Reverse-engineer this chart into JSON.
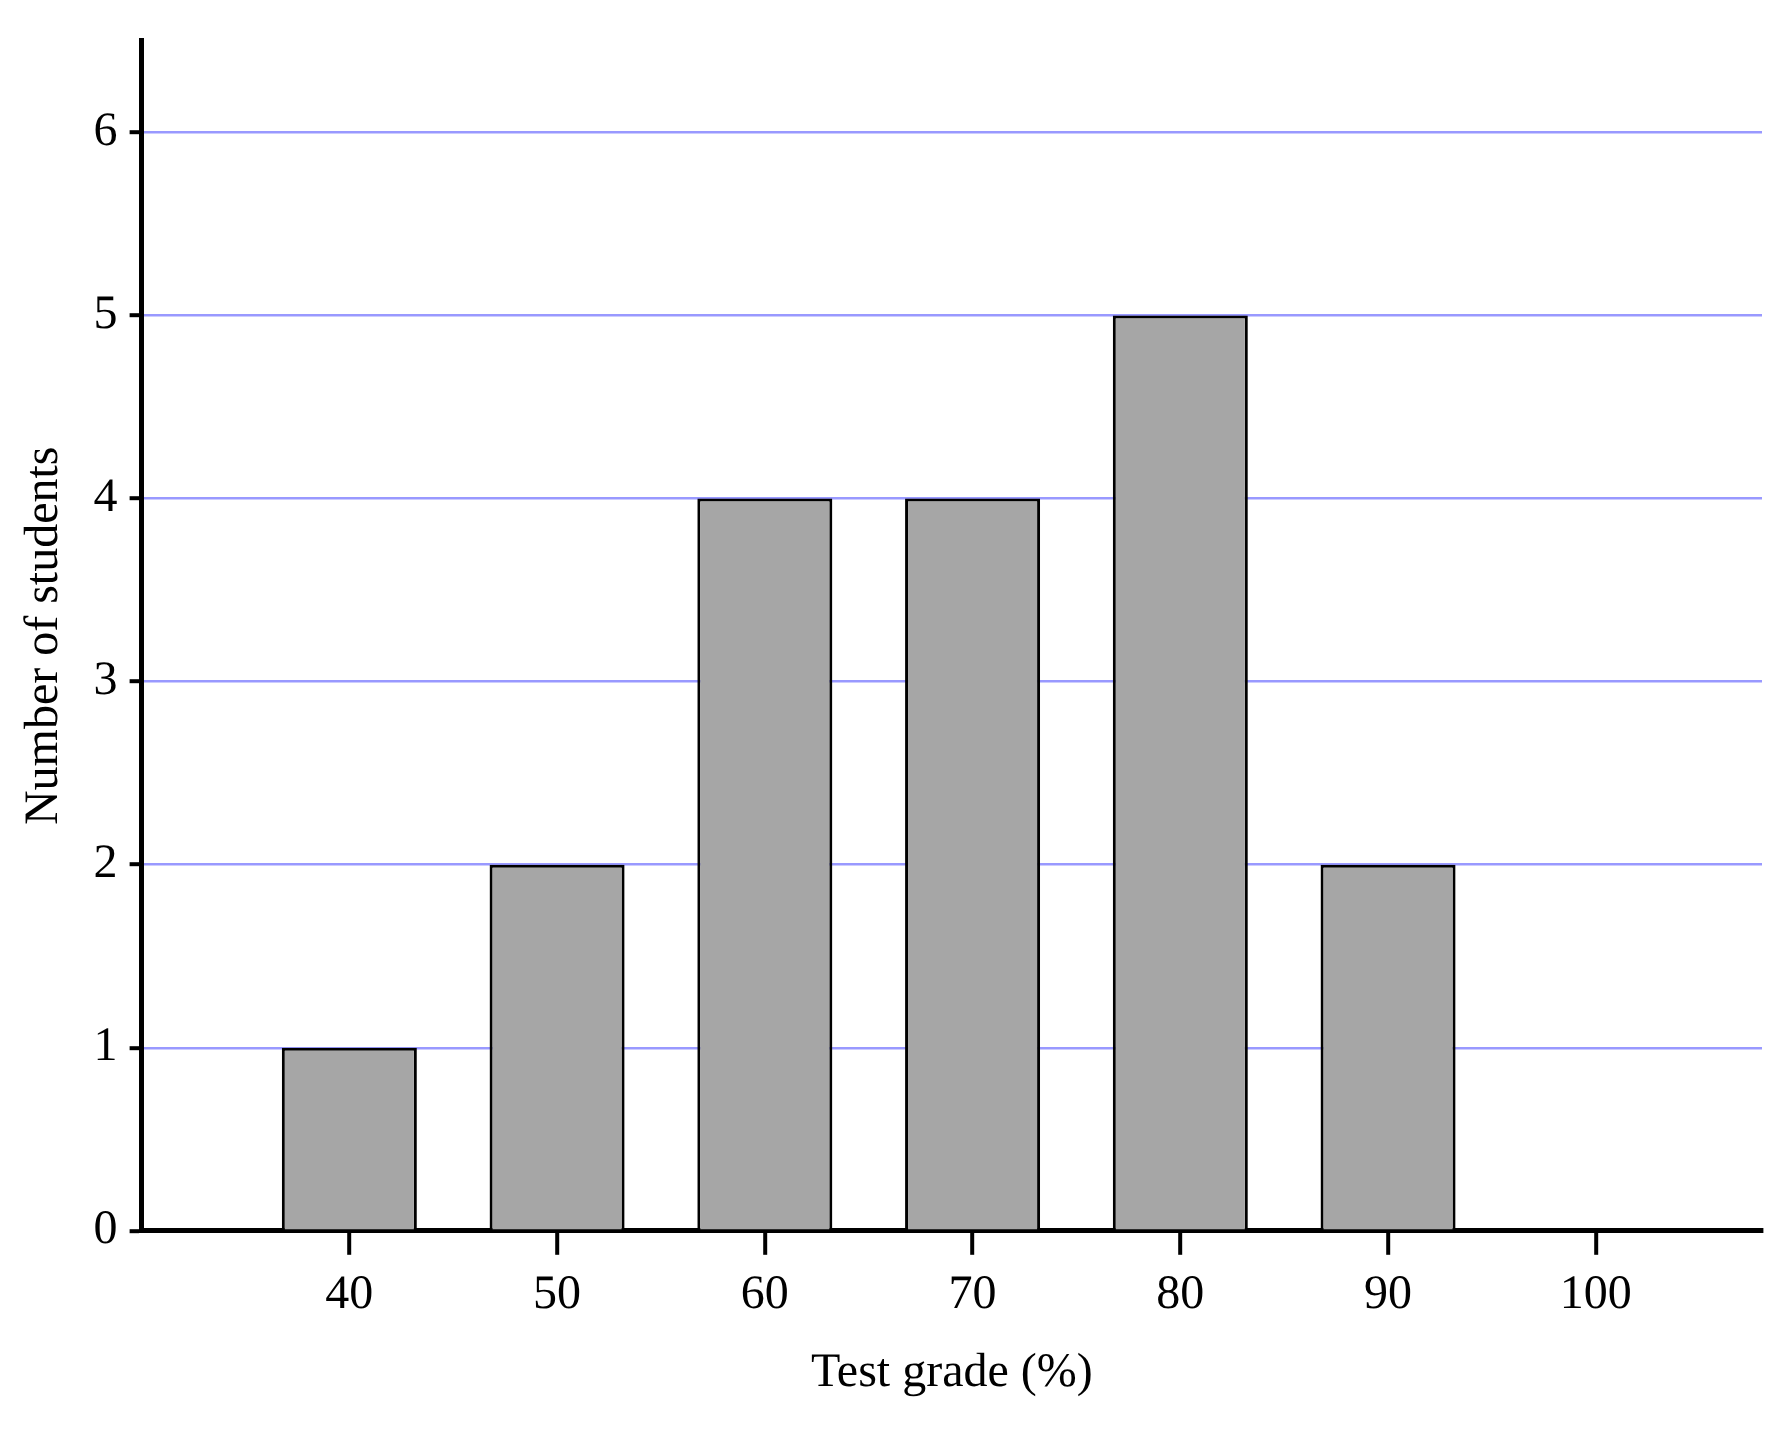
{
  "chart_data": {
    "type": "bar",
    "xlabel": "Test grade (%)",
    "ylabel": "Number of students",
    "x": [
      40,
      50,
      60,
      70,
      80,
      90
    ],
    "values": [
      1,
      2,
      4,
      4,
      5,
      2
    ],
    "color": "#a6a6a6",
    "xlim": [
      30,
      108
    ],
    "xticks": [
      40,
      50,
      60,
      70,
      80,
      90,
      100
    ],
    "ylim": [
      0,
      6.5
    ],
    "yticks": [
      0,
      1,
      2,
      3,
      4,
      5,
      6
    ],
    "grid": "y",
    "legend": false
  }
}
